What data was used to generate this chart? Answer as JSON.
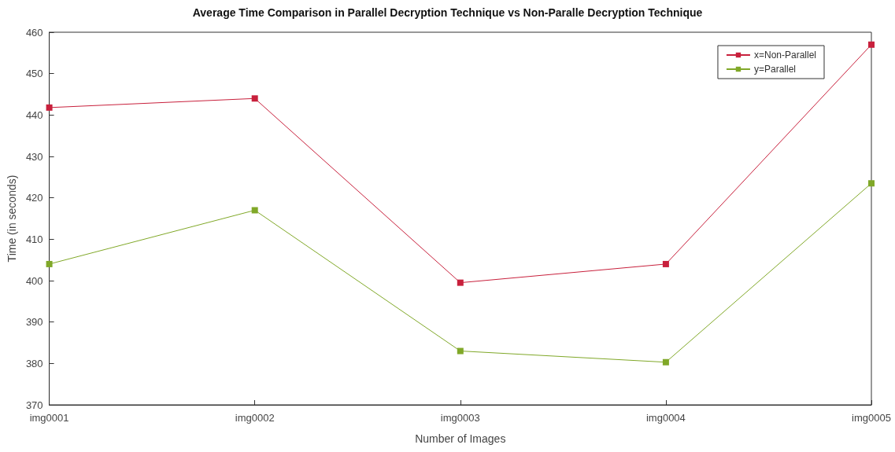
{
  "chart_data": {
    "type": "line",
    "title": "Average Time Comparison in Parallel Decryption Technique vs Non-Paralle Decryption Technique",
    "xlabel": "Number of Images",
    "ylabel": "Time (in seconds)",
    "categories": [
      "img0001",
      "img0002",
      "img0003",
      "img0004",
      "img0005"
    ],
    "series": [
      {
        "name": "x=Non-Parallel",
        "color": "#c8203c",
        "values": [
          441.8,
          444,
          399.5,
          404,
          457
        ]
      },
      {
        "name": "y=Parallel",
        "color": "#80a828",
        "values": [
          404,
          417,
          383,
          380.3,
          423.5
        ]
      }
    ],
    "ylim": [
      370,
      460
    ],
    "yticks": [
      370,
      380,
      390,
      400,
      410,
      420,
      430,
      440,
      450,
      460
    ],
    "grid": false,
    "legend": "top right",
    "marker": "square",
    "line_style": "solid"
  }
}
